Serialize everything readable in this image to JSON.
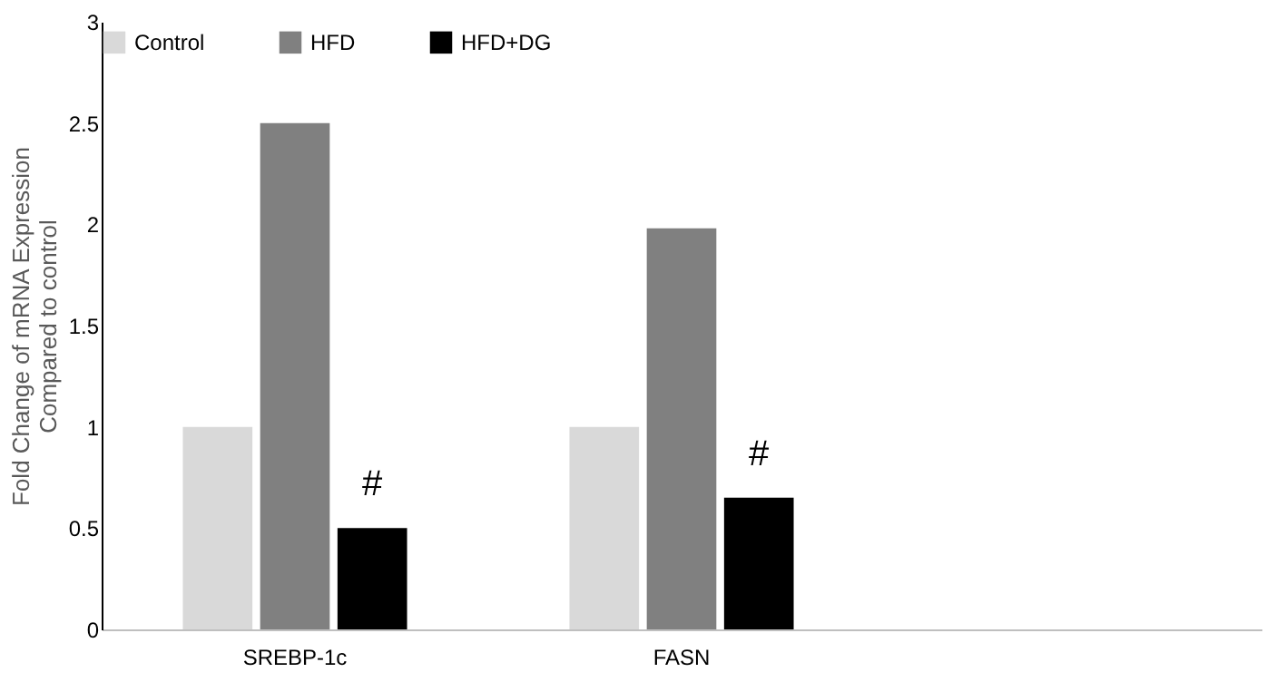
{
  "chart_data": {
    "type": "bar",
    "ylabel": "Fold Change of mRNA Expression\nCompared to control",
    "categories": [
      "SREBP-1c",
      "FASN",
      null
    ],
    "series": [
      {
        "name": "Control",
        "color": "#d9d9d9",
        "values": [
          1,
          1,
          null
        ]
      },
      {
        "name": "HFD",
        "color": "#808080",
        "values": [
          2.5,
          1.98,
          null
        ]
      },
      {
        "name": "HFD+DG",
        "color": "#000000",
        "values": [
          0.5,
          0.65,
          null
        ]
      }
    ],
    "ylim": [
      0,
      3
    ],
    "yticks": [
      0,
      0.5,
      1,
      1.5,
      2,
      2.5,
      3
    ],
    "grid": false,
    "legend": "top",
    "annotations": [
      "#",
      "#"
    ]
  }
}
